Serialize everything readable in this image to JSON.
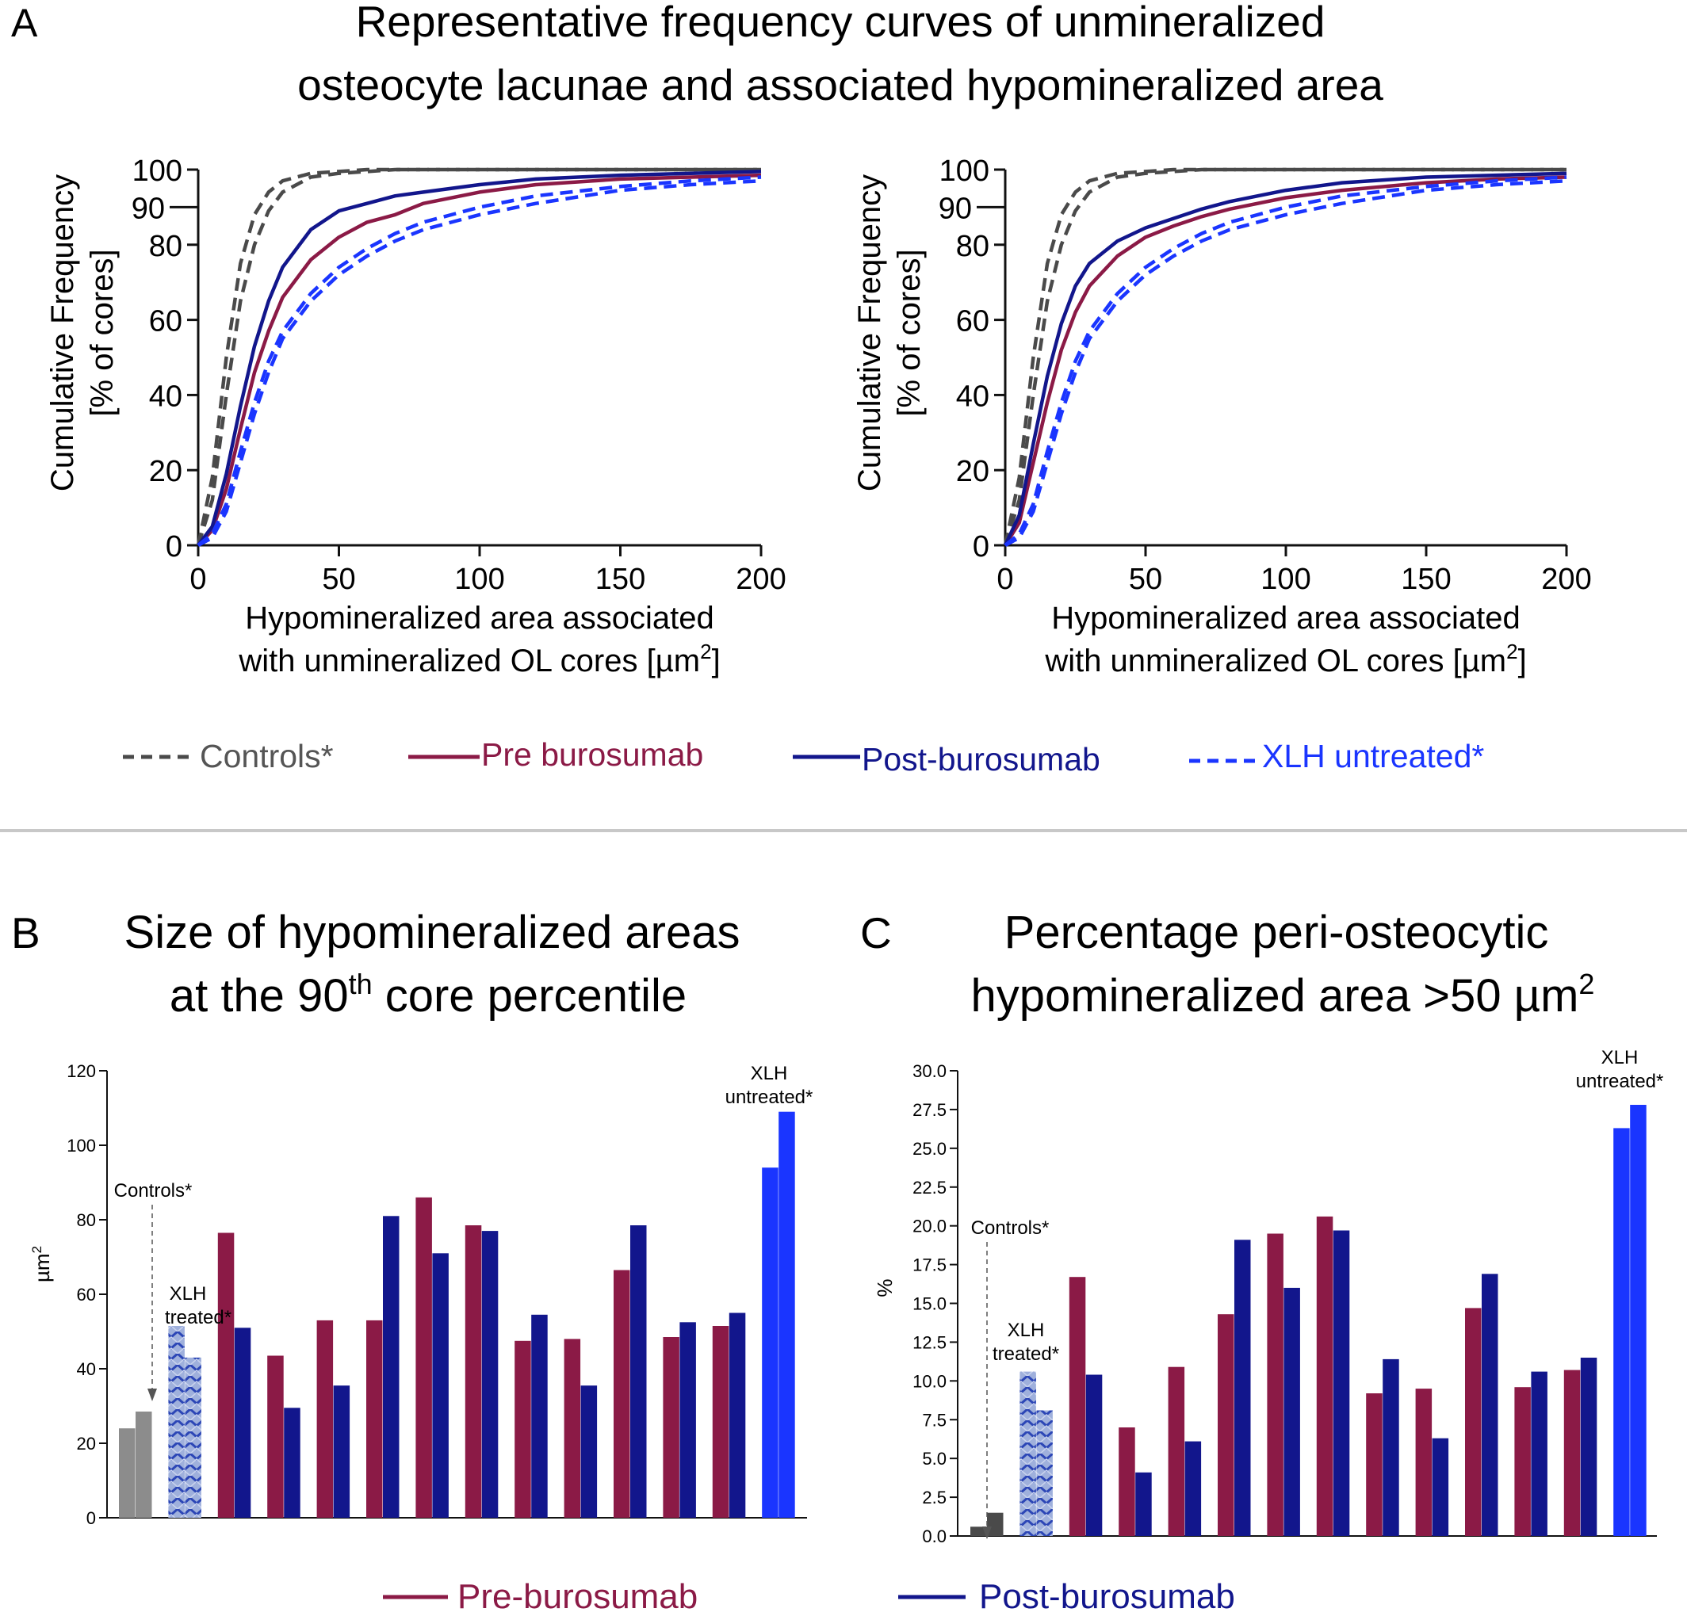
{
  "panels": {
    "a": {
      "letter": "A",
      "title_lines": [
        "Representative frequency curves of unmineralized",
        "osteocyte lacunae and associated hypomineralized area"
      ]
    },
    "b": {
      "letter": "B",
      "title_line1": "Size of hypomineralized areas",
      "title_line2_pre": "at the 90",
      "title_line2_sup": "th",
      "title_line2_post": " core percentile"
    },
    "c": {
      "letter": "C",
      "title_line1": "Percentage peri-osteocytic",
      "title_line2": "hypomineralized area >50 µm",
      "title_line2_sup": "2"
    }
  },
  "curve_axis": {
    "ylabel_line1": "Cumulative Frequency",
    "ylabel_line2": "[% of cores]",
    "xlabel_line1": "Hypomineralized area associated",
    "xlabel_line2": "with unmineralized OL cores [µm",
    "xlabel_sup": "2",
    "xlabel_end": "]",
    "xticks": [
      0,
      50,
      100,
      150,
      200
    ],
    "yticks": [
      0,
      20,
      40,
      60,
      80,
      90,
      100
    ]
  },
  "legend_a": [
    {
      "label": "Controls*",
      "color": "#4a4a4a",
      "dash": true,
      "bold_star": true
    },
    {
      "label": "Pre burosumab",
      "color": "#8b1a46",
      "dash": false
    },
    {
      "label": "Post-burosumab",
      "color": "#12168c",
      "dash": false
    },
    {
      "label": "XLH untreated*",
      "color": "#1a35ff",
      "dash": true,
      "bold_star": true
    }
  ],
  "legend_bc": [
    {
      "label": "Pre-burosumab",
      "color": "#8b1a46"
    },
    {
      "label": "Post-burosumab",
      "color": "#12168c"
    }
  ],
  "colors": {
    "pre": "#8b1a46",
    "post": "#12168c",
    "control_b": "#8c8c8c",
    "control_c": "#4a4a4a",
    "untreated": "#1a35ff",
    "treated_hatch": "#6f86c9",
    "separator": "#c8c8c8"
  },
  "chart_data": [
    {
      "type": "line",
      "panel": "A-left",
      "xlabel": "Hypomineralized area associated with unmineralized OL cores [µm2]",
      "ylabel": "Cumulative Frequency [% of cores]",
      "xlim": [
        0,
        200
      ],
      "ylim": [
        0,
        100
      ],
      "x": [
        0,
        5,
        10,
        15,
        20,
        25,
        30,
        40,
        50,
        60,
        70,
        80,
        100,
        120,
        150,
        175,
        200
      ],
      "series": [
        {
          "name": "Controls*",
          "group": "controls",
          "values": [
            0,
            18,
            50,
            75,
            88,
            94,
            97,
            99,
            99.5,
            100,
            100,
            100,
            100,
            100,
            100,
            100,
            100
          ]
        },
        {
          "name": "Controls*",
          "group": "controls",
          "values": [
            0,
            12,
            40,
            65,
            80,
            89,
            94,
            98,
            99,
            99.5,
            100,
            100,
            100,
            100,
            100,
            100,
            100
          ]
        },
        {
          "name": "Pre burosumab",
          "group": "pre",
          "values": [
            0,
            4,
            15,
            31,
            46,
            57,
            66,
            76,
            82,
            86,
            88,
            91,
            94,
            96,
            97.5,
            98,
            98.5
          ]
        },
        {
          "name": "Post-burosumab",
          "group": "post",
          "values": [
            0,
            5,
            19,
            37,
            53,
            65,
            74,
            84,
            89,
            91,
            93,
            94,
            96,
            97.5,
            98.5,
            99,
            99.5
          ]
        },
        {
          "name": "XLH untreated*",
          "group": "untreated",
          "values": [
            0,
            3,
            11,
            25,
            38,
            49,
            57,
            67,
            74,
            79,
            83,
            86,
            90,
            93,
            95.5,
            97,
            98
          ]
        },
        {
          "name": "XLH untreated*",
          "group": "untreated",
          "values": [
            0,
            2,
            9,
            22,
            35,
            46,
            55,
            65,
            72,
            77,
            81,
            84,
            88,
            91,
            94.5,
            96,
            97
          ]
        }
      ]
    },
    {
      "type": "line",
      "panel": "A-right",
      "xlabel": "Hypomineralized area associated with unmineralized OL cores [µm2]",
      "ylabel": "Cumulative Frequency [% of cores]",
      "xlim": [
        0,
        200
      ],
      "ylim": [
        0,
        100
      ],
      "x": [
        0,
        5,
        10,
        15,
        20,
        25,
        30,
        40,
        50,
        60,
        70,
        80,
        100,
        120,
        150,
        175,
        200
      ],
      "series": [
        {
          "name": "Controls*",
          "group": "controls",
          "values": [
            0,
            18,
            50,
            75,
            88,
            94,
            97,
            99,
            99.5,
            100,
            100,
            100,
            100,
            100,
            100,
            100,
            100
          ]
        },
        {
          "name": "Controls*",
          "group": "controls",
          "values": [
            0,
            12,
            40,
            65,
            80,
            89,
            94,
            98,
            99,
            99.5,
            100,
            100,
            100,
            100,
            100,
            100,
            100
          ]
        },
        {
          "name": "Pre burosumab",
          "group": "pre",
          "values": [
            0,
            6,
            22,
            38,
            52,
            62,
            69,
            77,
            82,
            85,
            87.5,
            89.5,
            92.5,
            94.5,
            96.5,
            97.5,
            98
          ]
        },
        {
          "name": "Post-burosumab",
          "group": "post",
          "values": [
            0,
            8,
            27,
            45,
            59,
            69,
            75,
            81,
            84.5,
            87,
            89.5,
            91.5,
            94.5,
            96.5,
            98,
            98.5,
            99
          ]
        },
        {
          "name": "XLH untreated*",
          "group": "untreated",
          "values": [
            0,
            3,
            11,
            25,
            38,
            49,
            57,
            67,
            74,
            79,
            83,
            86,
            90,
            93,
            95.5,
            97,
            98
          ]
        },
        {
          "name": "XLH untreated*",
          "group": "untreated",
          "values": [
            0,
            2,
            9,
            22,
            35,
            46,
            55,
            65,
            72,
            77,
            81,
            84,
            88,
            91,
            94.5,
            96,
            97
          ]
        }
      ]
    },
    {
      "type": "bar",
      "panel": "B",
      "title": "Size of hypomineralized areas at the 90th core percentile",
      "ylabel": "µm2",
      "ylim": [
        0,
        120
      ],
      "yticks": [
        0,
        20,
        40,
        60,
        80,
        100,
        120
      ],
      "groups": [
        {
          "kind": "control",
          "label": "Controls*",
          "values": [
            24,
            28.5
          ]
        },
        {
          "kind": "treated",
          "label": "XLH treated*",
          "values": [
            51.5,
            43
          ]
        },
        {
          "kind": "patient",
          "values": [
            76.5,
            51
          ]
        },
        {
          "kind": "patient",
          "values": [
            43.5,
            29.5
          ]
        },
        {
          "kind": "patient",
          "values": [
            53,
            35.5
          ]
        },
        {
          "kind": "patient",
          "values": [
            53,
            81
          ]
        },
        {
          "kind": "patient",
          "values": [
            86,
            71
          ]
        },
        {
          "kind": "patient",
          "values": [
            78.5,
            77
          ]
        },
        {
          "kind": "patient",
          "values": [
            47.5,
            54.5
          ]
        },
        {
          "kind": "patient",
          "values": [
            48,
            35.5
          ]
        },
        {
          "kind": "patient",
          "values": [
            66.5,
            78.5
          ]
        },
        {
          "kind": "patient",
          "values": [
            48.5,
            52.5
          ]
        },
        {
          "kind": "patient",
          "values": [
            51.5,
            55
          ]
        },
        {
          "kind": "untreated",
          "label": "XLH untreated*",
          "values": [
            94,
            109
          ]
        }
      ]
    },
    {
      "type": "bar",
      "panel": "C",
      "title": "Percentage peri-osteocytic hypomineralized area >50 µm2",
      "ylabel": "%",
      "ylim": [
        0,
        30
      ],
      "yticks": [
        "0.0",
        "2.5",
        "5.0",
        "7.5",
        "10.0",
        "12.5",
        "15.0",
        "17.5",
        "20.0",
        "22.5",
        "25.0",
        "27.5",
        "30.0"
      ],
      "groups": [
        {
          "kind": "control",
          "label": "Controls*",
          "values": [
            0.6,
            1.5
          ]
        },
        {
          "kind": "treated",
          "label": "XLH treated*",
          "values": [
            10.6,
            8.1
          ]
        },
        {
          "kind": "patient",
          "values": [
            16.7,
            10.4
          ]
        },
        {
          "kind": "patient",
          "values": [
            7.0,
            4.1
          ]
        },
        {
          "kind": "patient",
          "values": [
            10.9,
            6.1
          ]
        },
        {
          "kind": "patient",
          "values": [
            14.3,
            19.1
          ]
        },
        {
          "kind": "patient",
          "values": [
            19.5,
            16.0
          ]
        },
        {
          "kind": "patient",
          "values": [
            20.6,
            19.7
          ]
        },
        {
          "kind": "patient",
          "values": [
            9.2,
            11.4
          ]
        },
        {
          "kind": "patient",
          "values": [
            9.5,
            6.3
          ]
        },
        {
          "kind": "patient",
          "values": [
            14.7,
            16.9
          ]
        },
        {
          "kind": "patient",
          "values": [
            9.6,
            10.6
          ]
        },
        {
          "kind": "patient",
          "values": [
            10.7,
            11.5
          ]
        },
        {
          "kind": "untreated",
          "label": "XLH untreated*",
          "values": [
            26.3,
            27.8
          ]
        }
      ]
    }
  ],
  "annotations": {
    "controls": "Controls*",
    "treated_line1": "XLH",
    "treated_line2": "treated*",
    "untreated_line1": "XLH",
    "untreated_line2": "untreated*"
  }
}
